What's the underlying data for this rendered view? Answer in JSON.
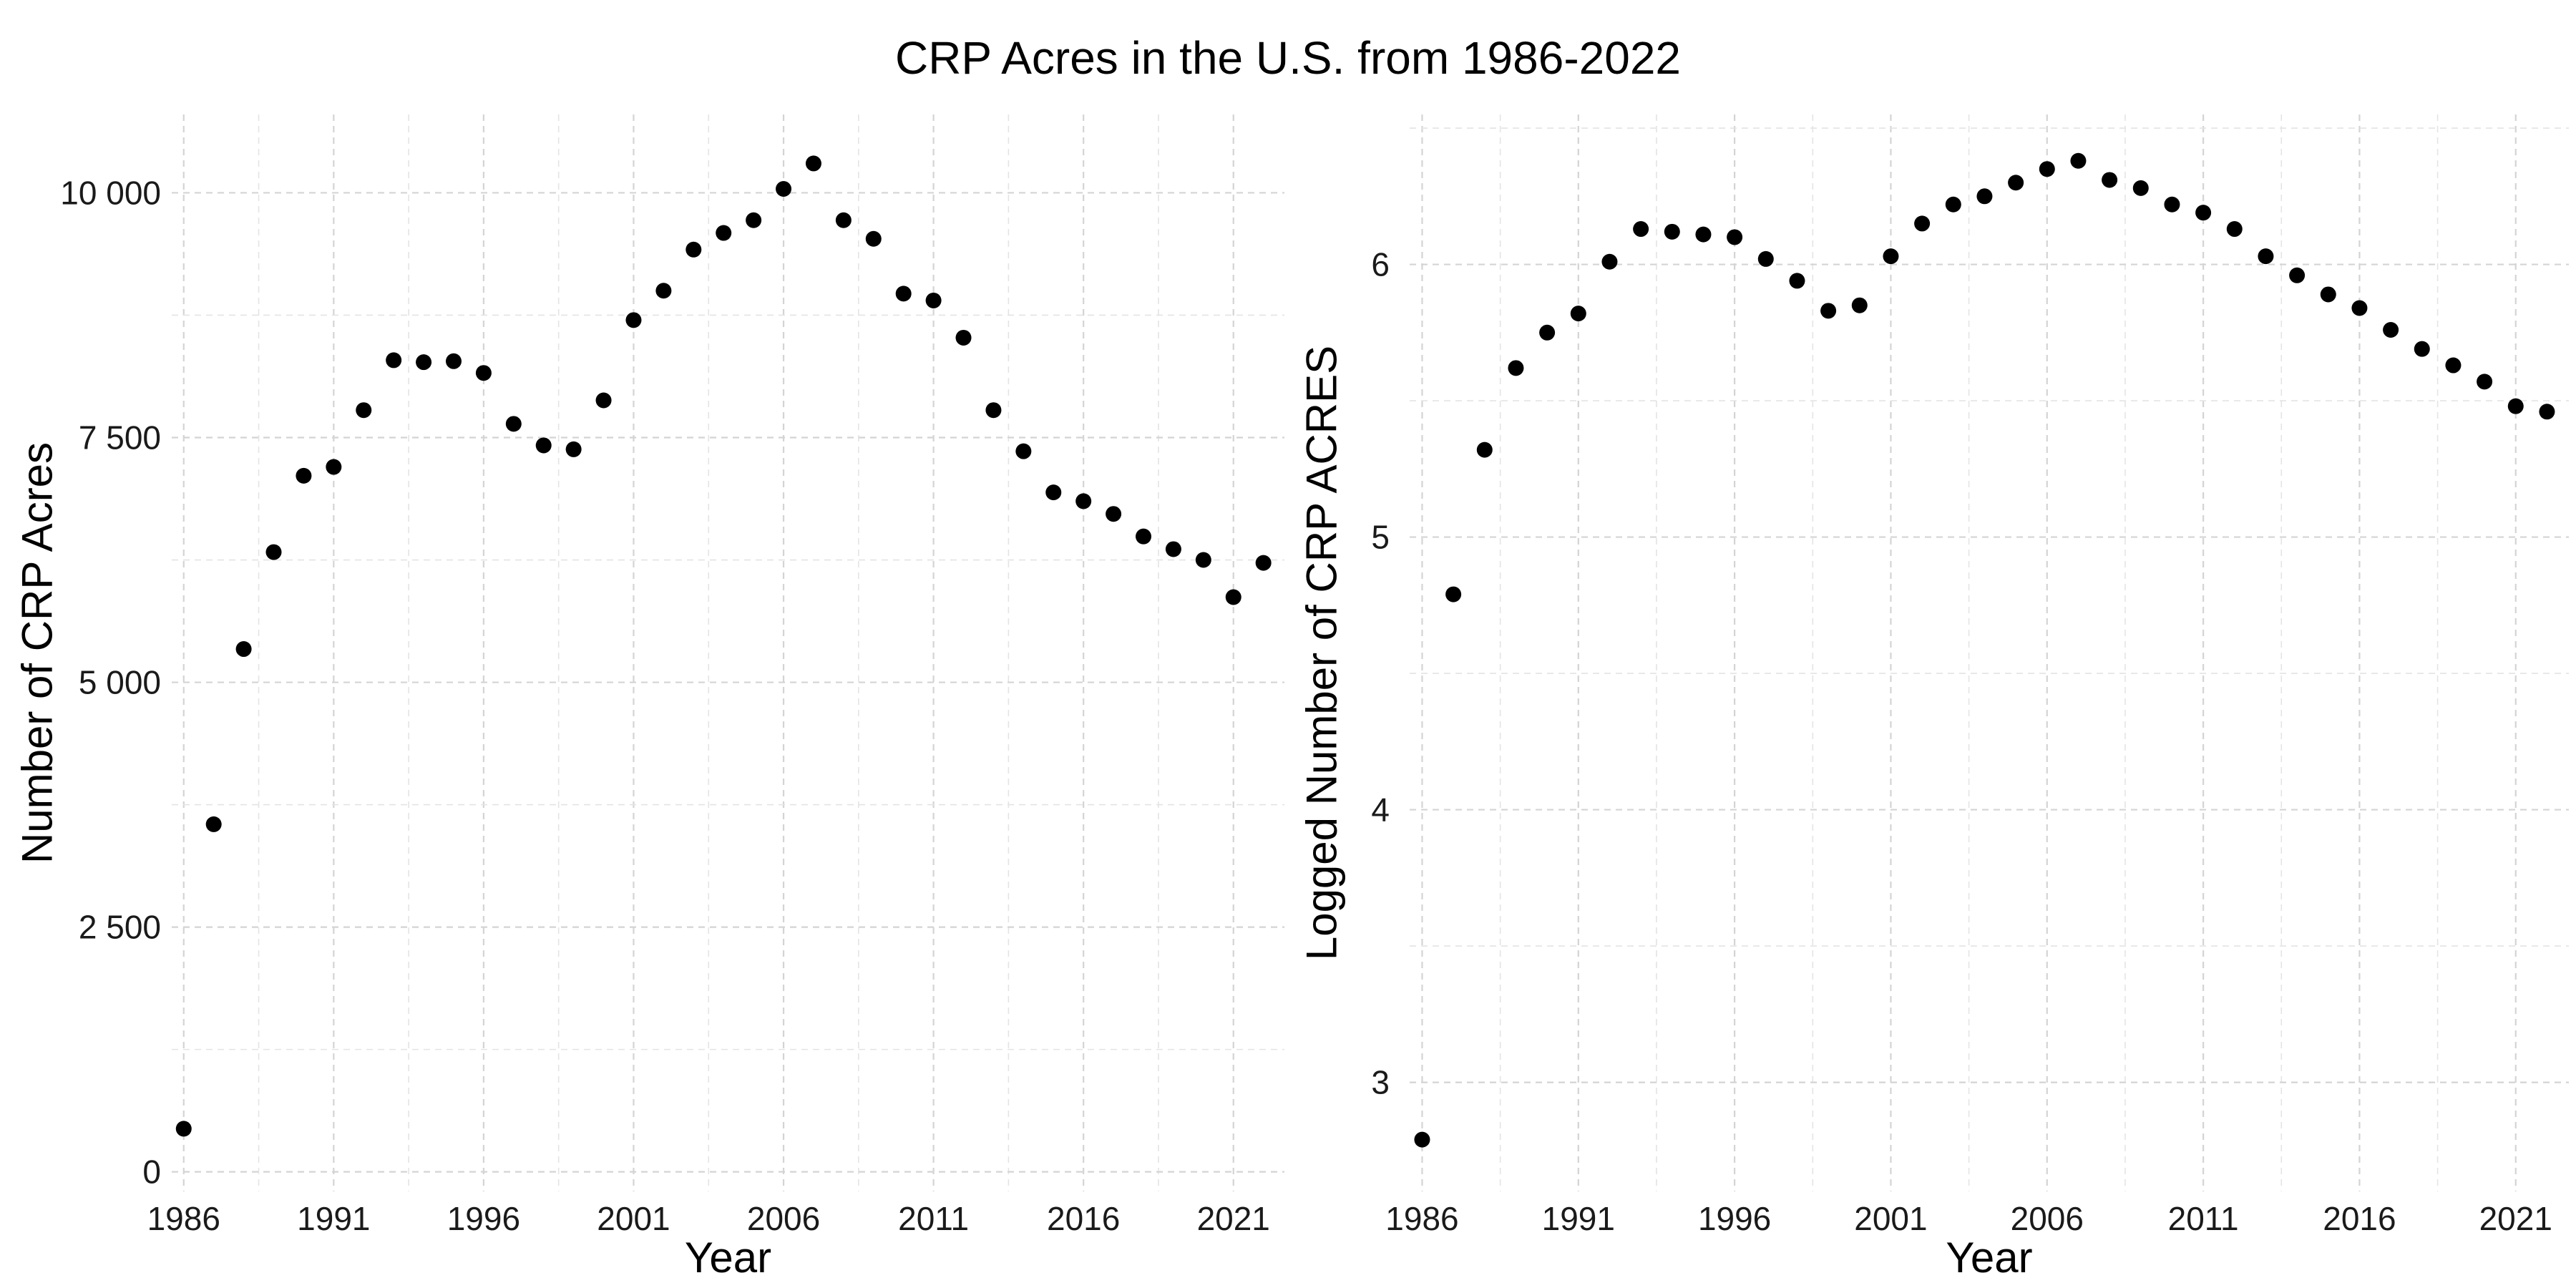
{
  "title": "CRP Acres in the U.S. from 1986-2022",
  "chart_data": [
    {
      "type": "scatter",
      "xlabel": "Year",
      "ylabel": "Number of CRP Acres",
      "xlim": [
        1985.6,
        2022.7
      ],
      "ylim": [
        -200,
        10800
      ],
      "xticks": [
        1986,
        1991,
        1996,
        2001,
        2006,
        2011,
        2016,
        2021
      ],
      "xtick_labels": [
        "1986",
        "1991",
        "1996",
        "2001",
        "2006",
        "2011",
        "2016",
        "2021"
      ],
      "yticks": [
        0,
        2500,
        5000,
        7500,
        10000
      ],
      "ytick_labels": [
        "0",
        "2 500",
        "5 000",
        "7 500",
        "10 000"
      ],
      "grid": true,
      "color": "#000000",
      "x": [
        1986,
        1987,
        1988,
        1989,
        1990,
        1991,
        1992,
        1993,
        1994,
        1995,
        1996,
        1997,
        1998,
        1999,
        2000,
        2001,
        2002,
        2003,
        2004,
        2005,
        2006,
        2007,
        2008,
        2009,
        2010,
        2011,
        2012,
        2013,
        2014,
        2015,
        2016,
        2017,
        2018,
        2019,
        2020,
        2021,
        2022
      ],
      "y": [
        440,
        3550,
        5340,
        6330,
        7110,
        7200,
        7780,
        8290,
        8270,
        8280,
        8160,
        7640,
        7420,
        7380,
        7880,
        8700,
        9000,
        9420,
        9590,
        9720,
        10040,
        10300,
        9720,
        9530,
        8970,
        8900,
        8520,
        7780,
        7360,
        6940,
        6850,
        6720,
        6490,
        6360,
        6250,
        5870,
        6220
      ]
    },
    {
      "type": "scatter",
      "xlabel": "Year",
      "ylabel": "Logged Number of CRP ACRES",
      "xlim": [
        1985.6,
        2022.7
      ],
      "ylim": [
        2.6,
        6.55
      ],
      "xticks": [
        1986,
        1991,
        1996,
        2001,
        2006,
        2011,
        2016,
        2021
      ],
      "xtick_labels": [
        "1986",
        "1991",
        "1996",
        "2001",
        "2006",
        "2011",
        "2016",
        "2021"
      ],
      "yticks": [
        3,
        4,
        5,
        6
      ],
      "ytick_labels": [
        "3",
        "4",
        "5",
        "6"
      ],
      "grid": true,
      "color": "#000000",
      "x": [
        1986,
        1987,
        1988,
        1989,
        1990,
        1991,
        1992,
        1993,
        1994,
        1995,
        1996,
        1997,
        1998,
        1999,
        2000,
        2001,
        2002,
        2003,
        2004,
        2005,
        2006,
        2007,
        2008,
        2009,
        2010,
        2011,
        2012,
        2013,
        2014,
        2015,
        2016,
        2017,
        2018,
        2019,
        2020,
        2021,
        2022
      ],
      "y": [
        2.79,
        4.79,
        5.32,
        5.62,
        5.75,
        5.82,
        6.01,
        6.13,
        6.12,
        6.11,
        6.1,
        6.02,
        5.94,
        5.83,
        5.85,
        6.03,
        6.15,
        6.22,
        6.25,
        6.3,
        6.35,
        6.38,
        6.31,
        6.28,
        6.22,
        6.19,
        6.13,
        6.03,
        5.96,
        5.89,
        5.84,
        5.76,
        5.69,
        5.63,
        5.57,
        5.48,
        5.46
      ]
    }
  ]
}
